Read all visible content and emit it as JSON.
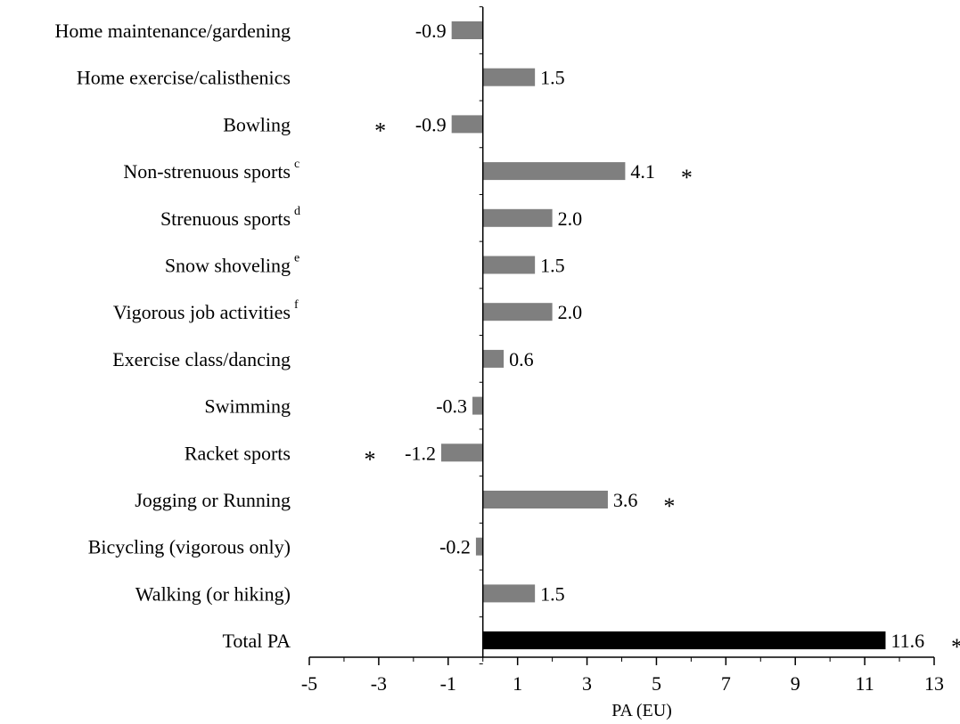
{
  "chart_data": {
    "type": "bar",
    "orientation": "horizontal",
    "xlabel": "PA (EU)",
    "ylabel": "",
    "title": "",
    "xlim": [
      -5,
      13
    ],
    "xticks": [
      "-5",
      "-3",
      "-1",
      "1",
      "3",
      "5",
      "7",
      "9",
      "11",
      "13"
    ],
    "grid": false,
    "colors": {
      "bar": "#7f7f7f",
      "total_bar": "#000000",
      "axis": "#000000"
    },
    "categories": [
      {
        "label": "Home maintenance/gardening",
        "sup": "",
        "value": -0.9,
        "value_label": "-0.9",
        "significant": false
      },
      {
        "label": "Home exercise/calisthenics",
        "sup": "",
        "value": 1.5,
        "value_label": "1.5",
        "significant": false
      },
      {
        "label": "Bowling",
        "sup": "",
        "value": -0.9,
        "value_label": "-0.9",
        "significant": true
      },
      {
        "label": "Non-strenuous sports",
        "sup": "c",
        "value": 4.1,
        "value_label": "4.1",
        "significant": true
      },
      {
        "label": "Strenuous sports",
        "sup": "d",
        "value": 2.0,
        "value_label": "2.0",
        "significant": false
      },
      {
        "label": "Snow shoveling",
        "sup": "e",
        "value": 1.5,
        "value_label": "1.5",
        "significant": false
      },
      {
        "label": "Vigorous job activities",
        "sup": "f",
        "value": 2.0,
        "value_label": "2.0",
        "significant": false
      },
      {
        "label": "Exercise class/dancing",
        "sup": "",
        "value": 0.6,
        "value_label": "0.6",
        "significant": false
      },
      {
        "label": "Swimming",
        "sup": "",
        "value": -0.3,
        "value_label": "-0.3",
        "significant": false
      },
      {
        "label": "Racket sports",
        "sup": "",
        "value": -1.2,
        "value_label": "-1.2",
        "significant": true
      },
      {
        "label": "Jogging or Running",
        "sup": "",
        "value": 3.6,
        "value_label": "3.6",
        "significant": true
      },
      {
        "label": "Bicycling (vigorous only)",
        "sup": "",
        "value": -0.2,
        "value_label": "-0.2",
        "significant": false
      },
      {
        "label": "Walking (or hiking)",
        "sup": "",
        "value": 1.5,
        "value_label": "1.5",
        "significant": false
      },
      {
        "label": "Total PA",
        "sup": "",
        "value": 11.6,
        "value_label": "11.6",
        "significant": true,
        "total": true
      }
    ],
    "significance_marker": "*"
  }
}
